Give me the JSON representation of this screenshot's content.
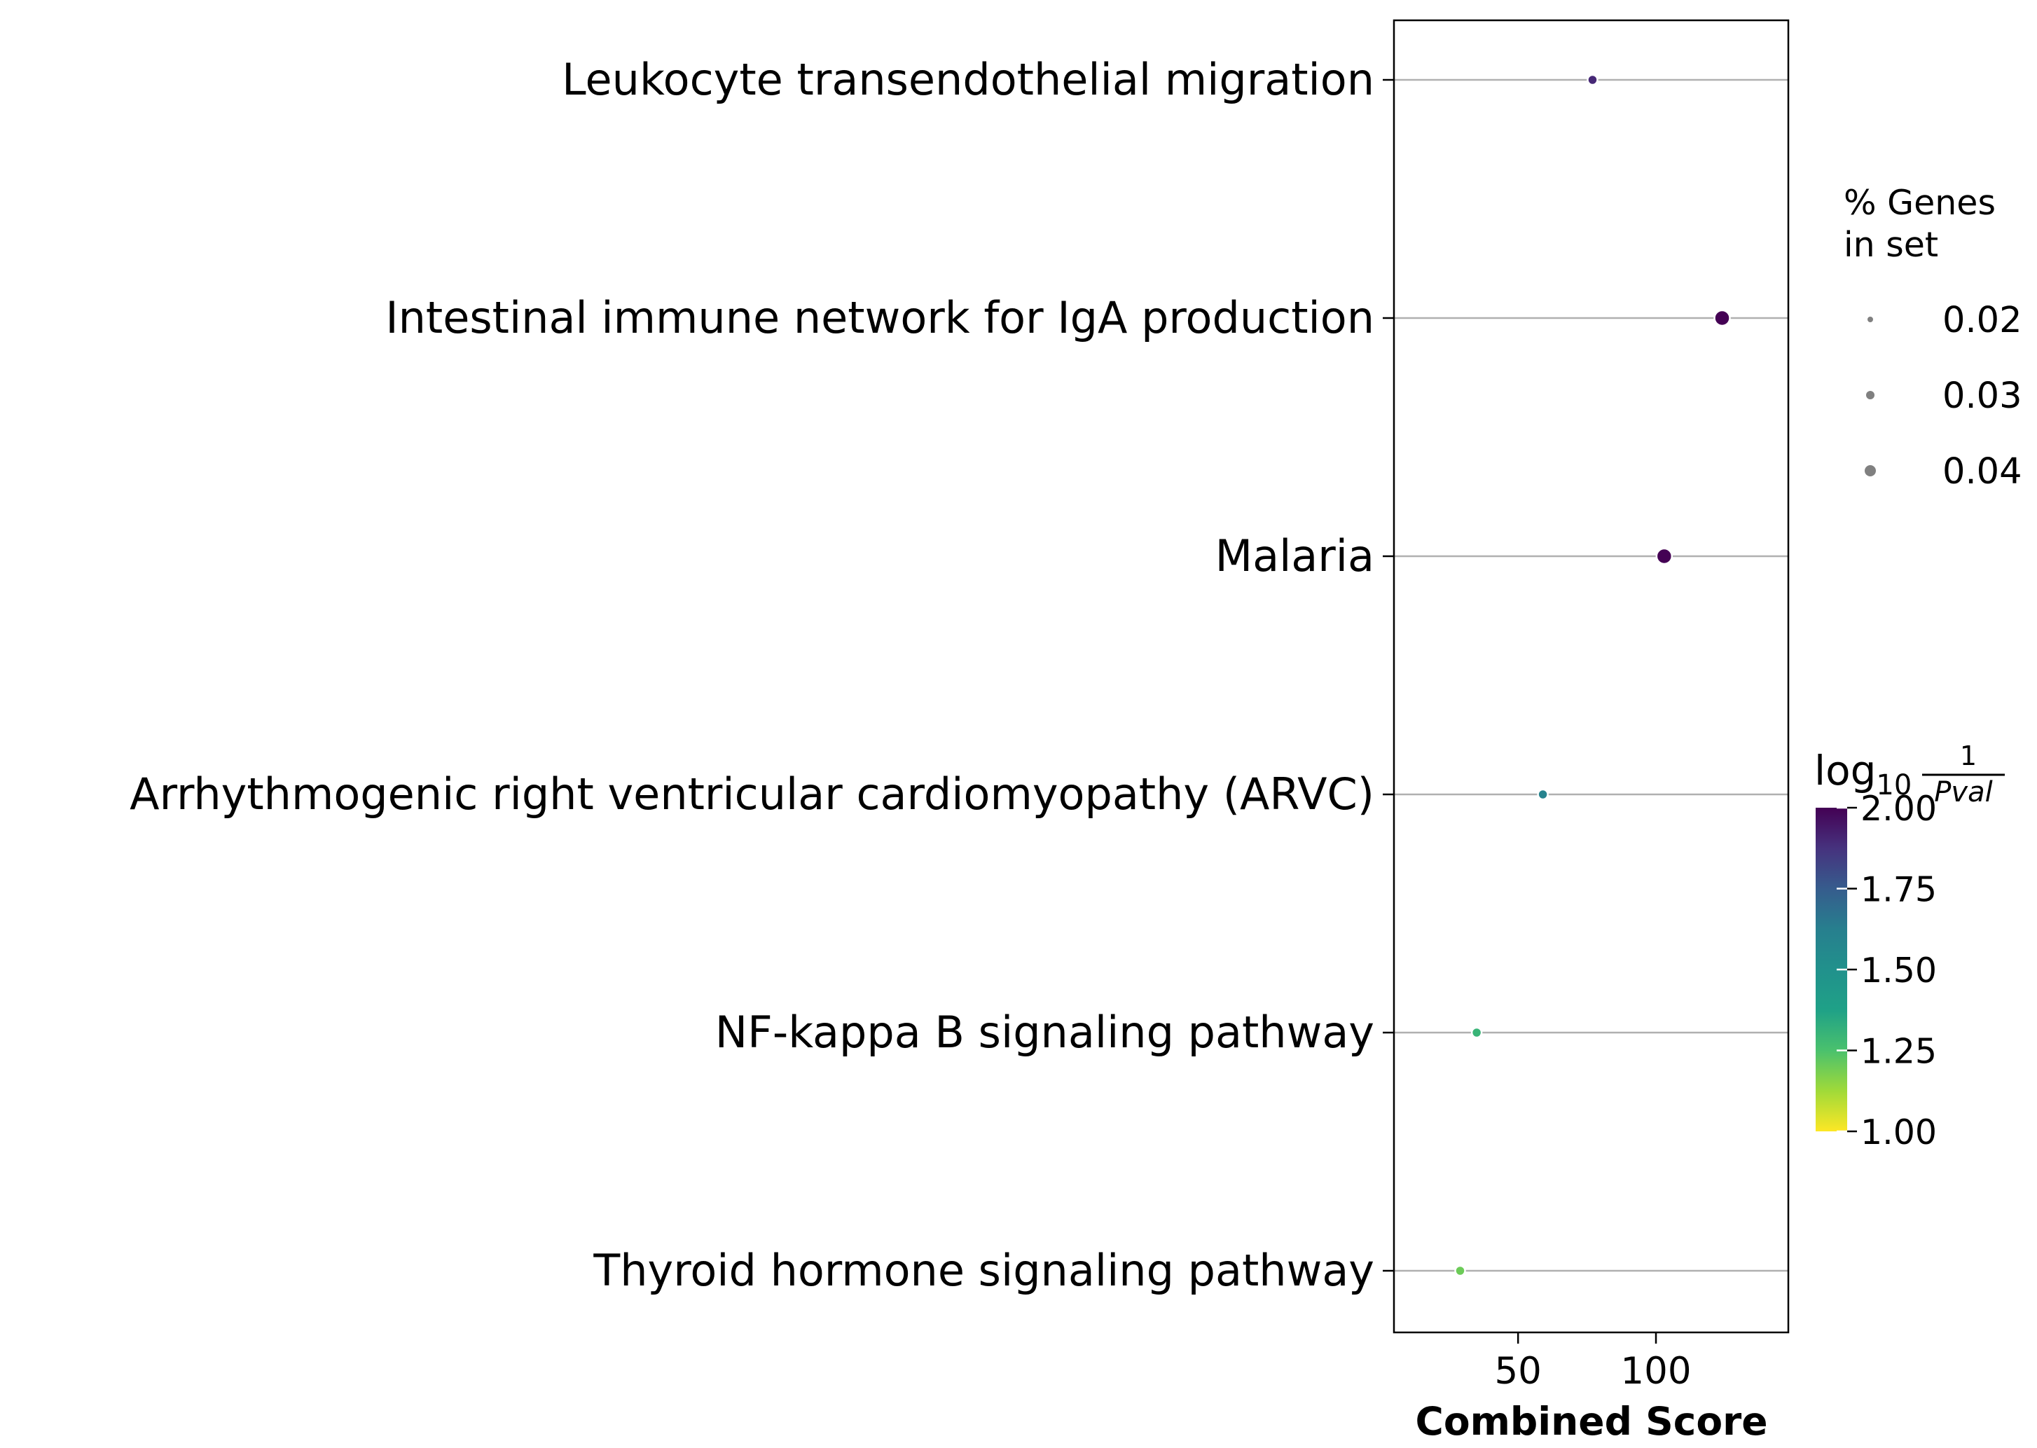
{
  "chart_data": {
    "type": "scatter",
    "xlabel": "Combined Score",
    "xlim": [
      5,
      148
    ],
    "xticks": [
      50,
      100
    ],
    "categories": [
      "Leukocyte transendothelial migration",
      "Intestinal immune network for IgA production",
      "Malaria",
      "Arrhythmogenic right ventricular cardiomyopathy (ARVC)",
      "NF-kappa B signaling pathway",
      "Thyroid hormone signaling pathway"
    ],
    "points": [
      {
        "term": "Leukocyte transendothelial migration",
        "combined_score": 77,
        "pct_genes": 0.02,
        "log10_inv_pval": 1.9
      },
      {
        "term": "Intestinal immune network for IgA production",
        "combined_score": 124,
        "pct_genes": 0.04,
        "log10_inv_pval": 2.0
      },
      {
        "term": "Malaria",
        "combined_score": 103,
        "pct_genes": 0.04,
        "log10_inv_pval": 2.0
      },
      {
        "term": "Arrhythmogenic right ventricular cardiomyopathy (ARVC)",
        "combined_score": 59,
        "pct_genes": 0.02,
        "log10_inv_pval": 1.6
      },
      {
        "term": "NF-kappa B signaling pathway",
        "combined_score": 35,
        "pct_genes": 0.02,
        "log10_inv_pval": 1.3
      },
      {
        "term": "Thyroid hormone signaling pathway",
        "combined_score": 29,
        "pct_genes": 0.02,
        "log10_inv_pval": 1.2
      }
    ],
    "size_legend": {
      "title_lines": [
        "% Genes",
        "in set"
      ],
      "values": [
        0.02,
        0.03,
        0.04
      ],
      "labels": [
        "0.02",
        "0.03",
        "0.04"
      ],
      "color": "#808080"
    },
    "colorbar": {
      "title_prefix": "log",
      "title_subscript": "10",
      "title_numerator": "1",
      "title_denominator": "Pval",
      "range": [
        1.0,
        2.0
      ],
      "tick_labels": [
        "2.00",
        "1.75",
        "1.50",
        "1.25",
        "1.00"
      ],
      "colormap": "viridis"
    },
    "grid": "horizontal"
  }
}
